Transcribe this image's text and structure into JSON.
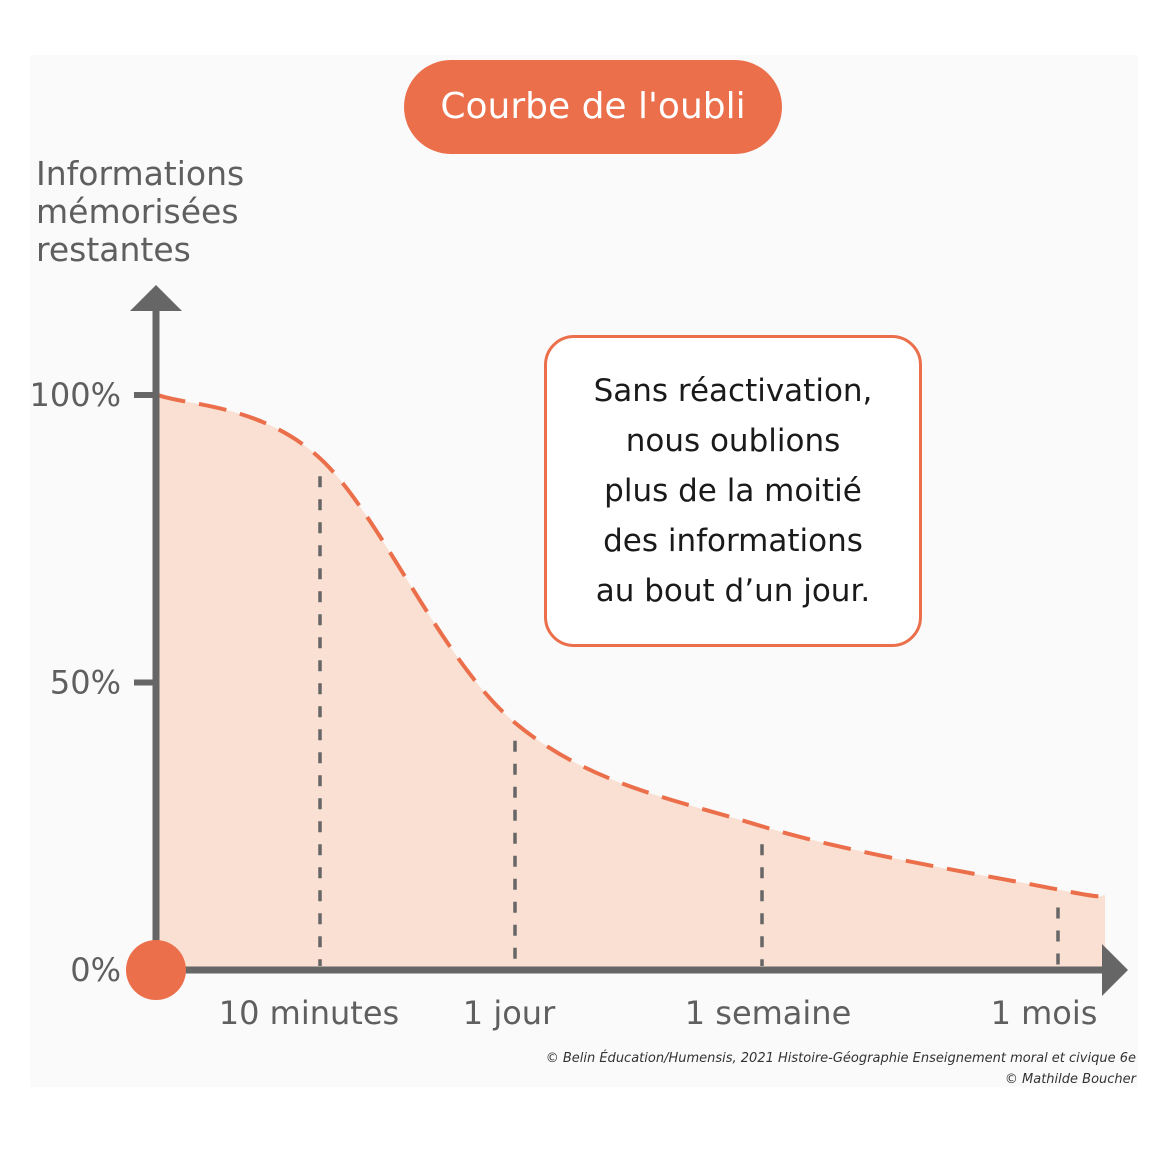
{
  "chart_data": {
    "type": "area",
    "title": "Courbe de l'oubli",
    "ylabel": [
      "Informations",
      "mémorisées",
      "restantes"
    ],
    "xlabel": "",
    "y_ticks": [
      "100%",
      "50%",
      "0%"
    ],
    "ylim": [
      0,
      100
    ],
    "categories": [
      "10 minutes",
      "1 jour",
      "1 semaine",
      "1 mois"
    ],
    "series": [
      {
        "x": [
          "0",
          "10 minutes",
          "1 jour",
          "1 semaine",
          "1 mois",
          "end"
        ],
        "values": [
          100,
          89,
          43,
          25,
          14,
          13
        ]
      }
    ],
    "annotation": [
      "Sans réactivation,",
      "nous oublions",
      "plus de la moitié",
      "des informations",
      "au bout d’un jour."
    ],
    "grid": false,
    "legend": "none"
  },
  "credits": [
    "© Belin Éducation/Humensis, 2021 Histoire-Géographie Enseignement moral et civique 6e",
    "© Mathilde Boucher"
  ],
  "colors": {
    "accent": "#eb6f4b",
    "fill": "#fae0d2",
    "axis": "#666666",
    "text": "#5f5f5f"
  }
}
